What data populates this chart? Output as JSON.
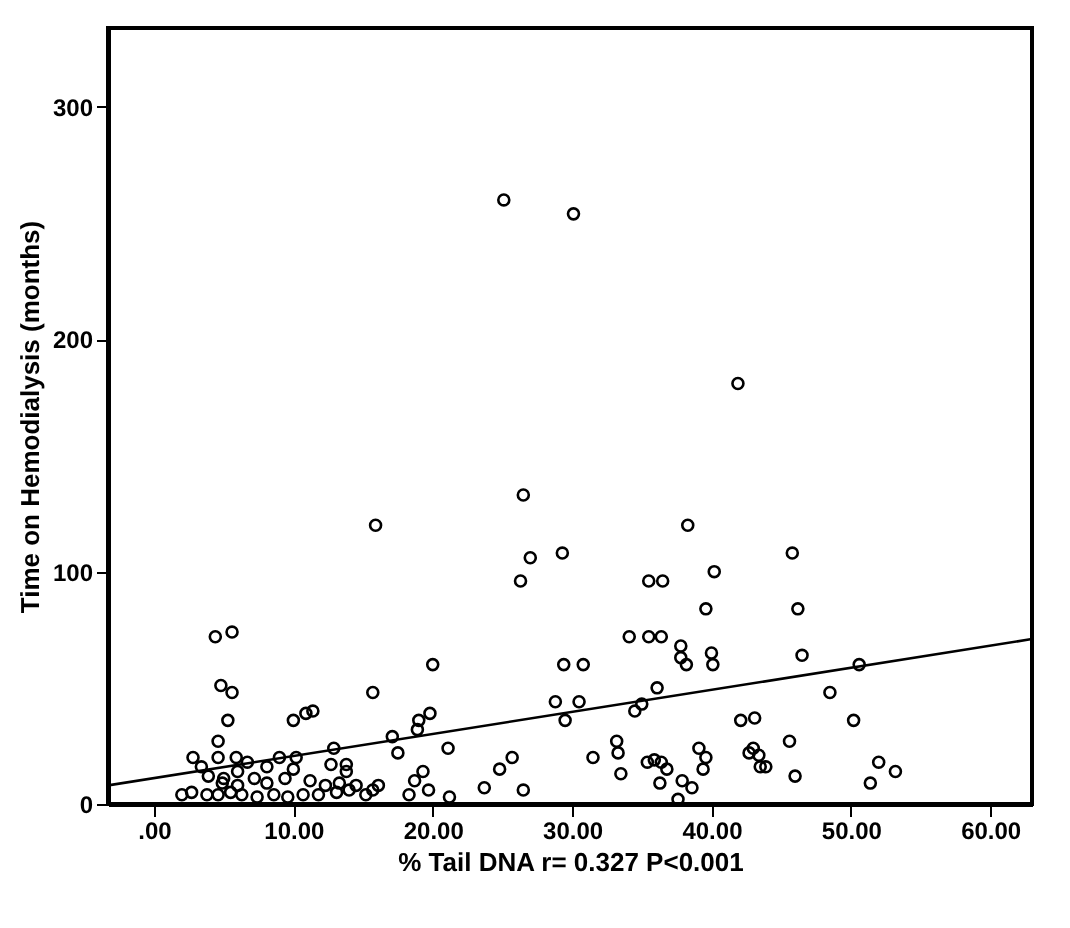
{
  "chart_data": {
    "type": "scatter",
    "xlabel": "% Tail DNA r= 0.327 P<0.001",
    "ylabel": "Time on Hemodialysis (months)",
    "xlim": [
      -3.3,
      63
    ],
    "ylim": [
      0,
      334
    ],
    "xticks": [
      {
        "value": 0,
        "label": ".00"
      },
      {
        "value": 10,
        "label": "10.00"
      },
      {
        "value": 20,
        "label": "20.00"
      },
      {
        "value": 30,
        "label": "30.00"
      },
      {
        "value": 40,
        "label": "40.00"
      },
      {
        "value": 50,
        "label": "50.00"
      },
      {
        "value": 60,
        "label": "60.00"
      }
    ],
    "yticks": [
      0,
      100,
      200,
      300
    ],
    "grid": false,
    "series": [
      {
        "type": "scatter",
        "marker": "circle",
        "color": "#000000",
        "x": [
          25.1,
          30.1,
          41.9,
          26.5,
          15.9,
          4.4,
          5.6,
          4.8,
          5.6,
          5.3,
          4.6,
          10.0,
          10.9,
          11.4,
          15.7,
          20.0,
          26.3,
          27.0,
          29.3,
          29.4,
          28.8,
          29.5,
          19.8,
          19.0,
          18.9,
          17.1,
          17.5,
          21.1,
          25.7,
          24.8,
          23.7,
          26.5,
          21.2,
          19.3,
          18.7,
          19.7,
          18.3,
          2.8,
          3.4,
          4.6,
          5.9,
          6.7,
          9.0,
          10.2,
          12.9,
          12.7,
          13.8,
          13.8,
          10.0,
          9.4,
          11.2,
          8.1,
          7.2,
          2.0,
          2.7,
          3.8,
          4.6,
          5.5,
          6.3,
          7.4,
          8.6,
          9.6,
          10.7,
          11.8,
          13.1,
          14.0,
          15.2,
          16.1,
          15.7,
          3.9,
          5.0,
          6.0,
          8.1,
          12.3,
          13.3,
          14.5,
          4.9,
          6.0,
          38.3,
          45.8,
          35.5,
          36.5,
          40.2,
          39.6,
          46.2,
          34.1,
          35.5,
          36.4,
          37.8,
          37.8,
          38.2,
          40.0,
          40.1,
          46.5,
          50.6,
          30.8,
          30.5,
          36.1,
          35.0,
          34.5,
          48.5,
          50.2,
          42.1,
          43.1,
          45.6,
          33.2,
          33.3,
          31.5,
          33.5,
          35.4,
          35.9,
          36.4,
          36.8,
          36.3,
          37.9,
          38.6,
          37.6,
          39.1,
          39.6,
          39.4,
          42.7,
          43.0,
          43.4,
          43.9,
          43.5,
          46.0,
          52.0,
          53.2,
          51.4
        ],
        "values": [
          260,
          254,
          181,
          133,
          120,
          72,
          74,
          51,
          48,
          36,
          27,
          36,
          39,
          40,
          48,
          60,
          96,
          106,
          108,
          60,
          44,
          36,
          39,
          36,
          32,
          29,
          22,
          24,
          20,
          15,
          7,
          6,
          3,
          14,
          10,
          6,
          4,
          20,
          16,
          20,
          20,
          18,
          20,
          20,
          24,
          17,
          17,
          14,
          15,
          11,
          10,
          9,
          11,
          4,
          5,
          4,
          4,
          5,
          4,
          3,
          4,
          3,
          4,
          4,
          5,
          6,
          4,
          8,
          6,
          12,
          11,
          14,
          16,
          8,
          9,
          8,
          9,
          8,
          120,
          108,
          96,
          96,
          100,
          84,
          84,
          72,
          72,
          72,
          68,
          63,
          60,
          65,
          60,
          64,
          60,
          60,
          44,
          50,
          43,
          40,
          48,
          36,
          36,
          37,
          27,
          27,
          22,
          20,
          13,
          18,
          19,
          18,
          15,
          9,
          10,
          7,
          2,
          24,
          20,
          15,
          22,
          24,
          21,
          16,
          16,
          12,
          18,
          14,
          9
        ]
      },
      {
        "type": "line",
        "color": "#000000",
        "x": [
          -3.3,
          63
        ],
        "values": [
          8,
          71
        ]
      }
    ]
  }
}
